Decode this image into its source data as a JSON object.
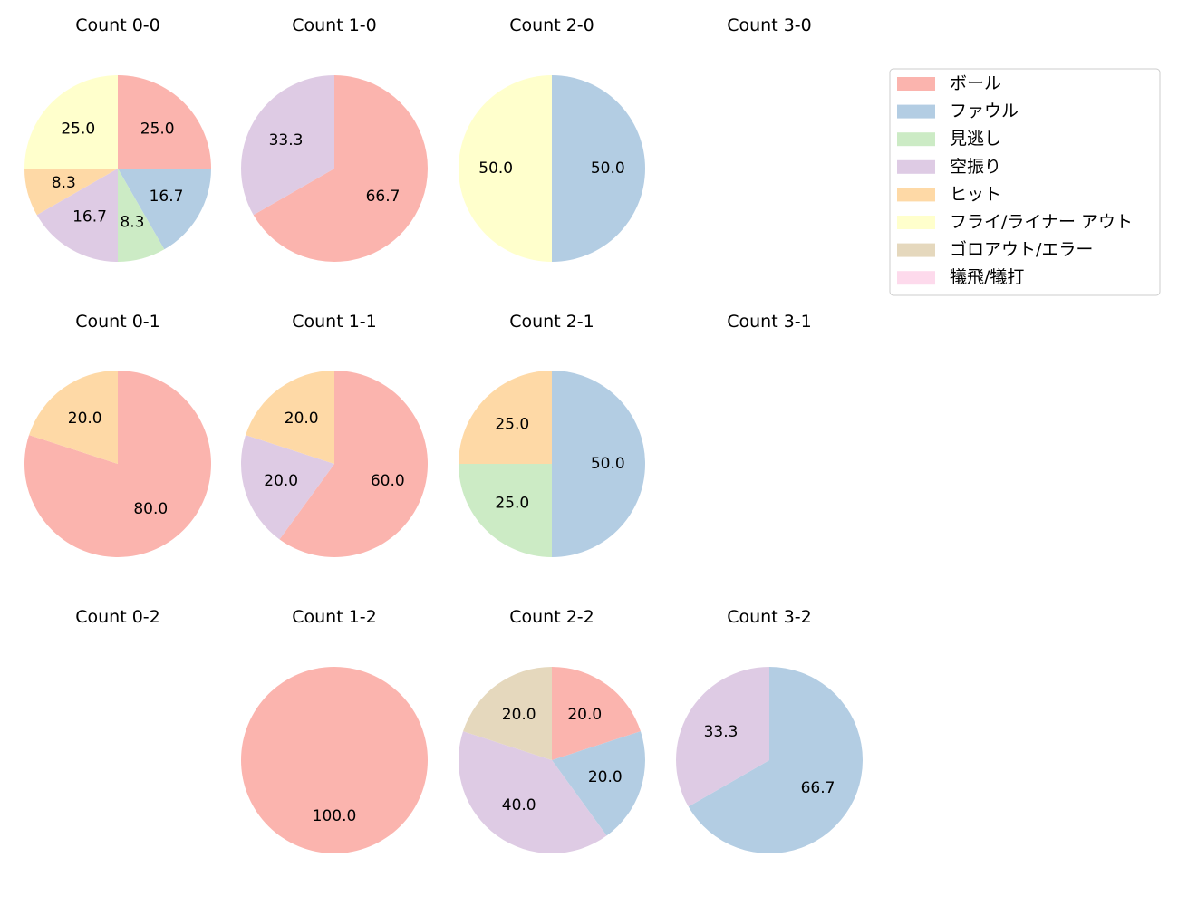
{
  "chart_data": {
    "type": "pie",
    "legend": {
      "placement": "top-right",
      "entries": [
        {
          "label": "ボール",
          "color": "#fbb4ae"
        },
        {
          "label": "ファウル",
          "color": "#b3cde3"
        },
        {
          "label": "見逃し",
          "color": "#ccebc5"
        },
        {
          "label": "空振り",
          "color": "#decbe4"
        },
        {
          "label": "ヒット",
          "color": "#fed9a6"
        },
        {
          "label": "フライ/ライナー アウト",
          "color": "#ffffcc"
        },
        {
          "label": "ゴロアウト/エラー",
          "color": "#e5d8bd"
        },
        {
          "label": "犠飛/犠打",
          "color": "#fddaec"
        }
      ]
    },
    "pies": [
      {
        "title": "Count 0-0",
        "slices": [
          {
            "category": "ボール",
            "value": 25.0
          },
          {
            "category": "ファウル",
            "value": 16.7
          },
          {
            "category": "見逃し",
            "value": 8.3
          },
          {
            "category": "空振り",
            "value": 16.7
          },
          {
            "category": "ヒット",
            "value": 8.3
          },
          {
            "category": "フライ/ライナー アウト",
            "value": 25.0
          }
        ]
      },
      {
        "title": "Count 1-0",
        "slices": [
          {
            "category": "ボール",
            "value": 66.7
          },
          {
            "category": "空振り",
            "value": 33.3
          }
        ]
      },
      {
        "title": "Count 2-0",
        "slices": [
          {
            "category": "ファウル",
            "value": 50.0
          },
          {
            "category": "フライ/ライナー アウト",
            "value": 50.0
          }
        ]
      },
      {
        "title": "Count 3-0",
        "slices": []
      },
      {
        "title": "Count 0-1",
        "slices": [
          {
            "category": "ボール",
            "value": 80.0
          },
          {
            "category": "ヒット",
            "value": 20.0
          }
        ]
      },
      {
        "title": "Count 1-1",
        "slices": [
          {
            "category": "ボール",
            "value": 60.0
          },
          {
            "category": "空振り",
            "value": 20.0
          },
          {
            "category": "ヒット",
            "value": 20.0
          }
        ]
      },
      {
        "title": "Count 2-1",
        "slices": [
          {
            "category": "ファウル",
            "value": 50.0
          },
          {
            "category": "見逃し",
            "value": 25.0
          },
          {
            "category": "ヒット",
            "value": 25.0
          }
        ]
      },
      {
        "title": "Count 3-1",
        "slices": []
      },
      {
        "title": "Count 0-2",
        "slices": []
      },
      {
        "title": "Count 1-2",
        "slices": [
          {
            "category": "ボール",
            "value": 100.0
          }
        ]
      },
      {
        "title": "Count 2-2",
        "slices": [
          {
            "category": "ボール",
            "value": 20.0
          },
          {
            "category": "ファウル",
            "value": 20.0
          },
          {
            "category": "空振り",
            "value": 40.0
          },
          {
            "category": "ゴロアウト/エラー",
            "value": 20.0
          }
        ]
      },
      {
        "title": "Count 3-2",
        "slices": [
          {
            "category": "ファウル",
            "value": 66.7
          },
          {
            "category": "空振り",
            "value": 33.3
          }
        ]
      }
    ]
  }
}
